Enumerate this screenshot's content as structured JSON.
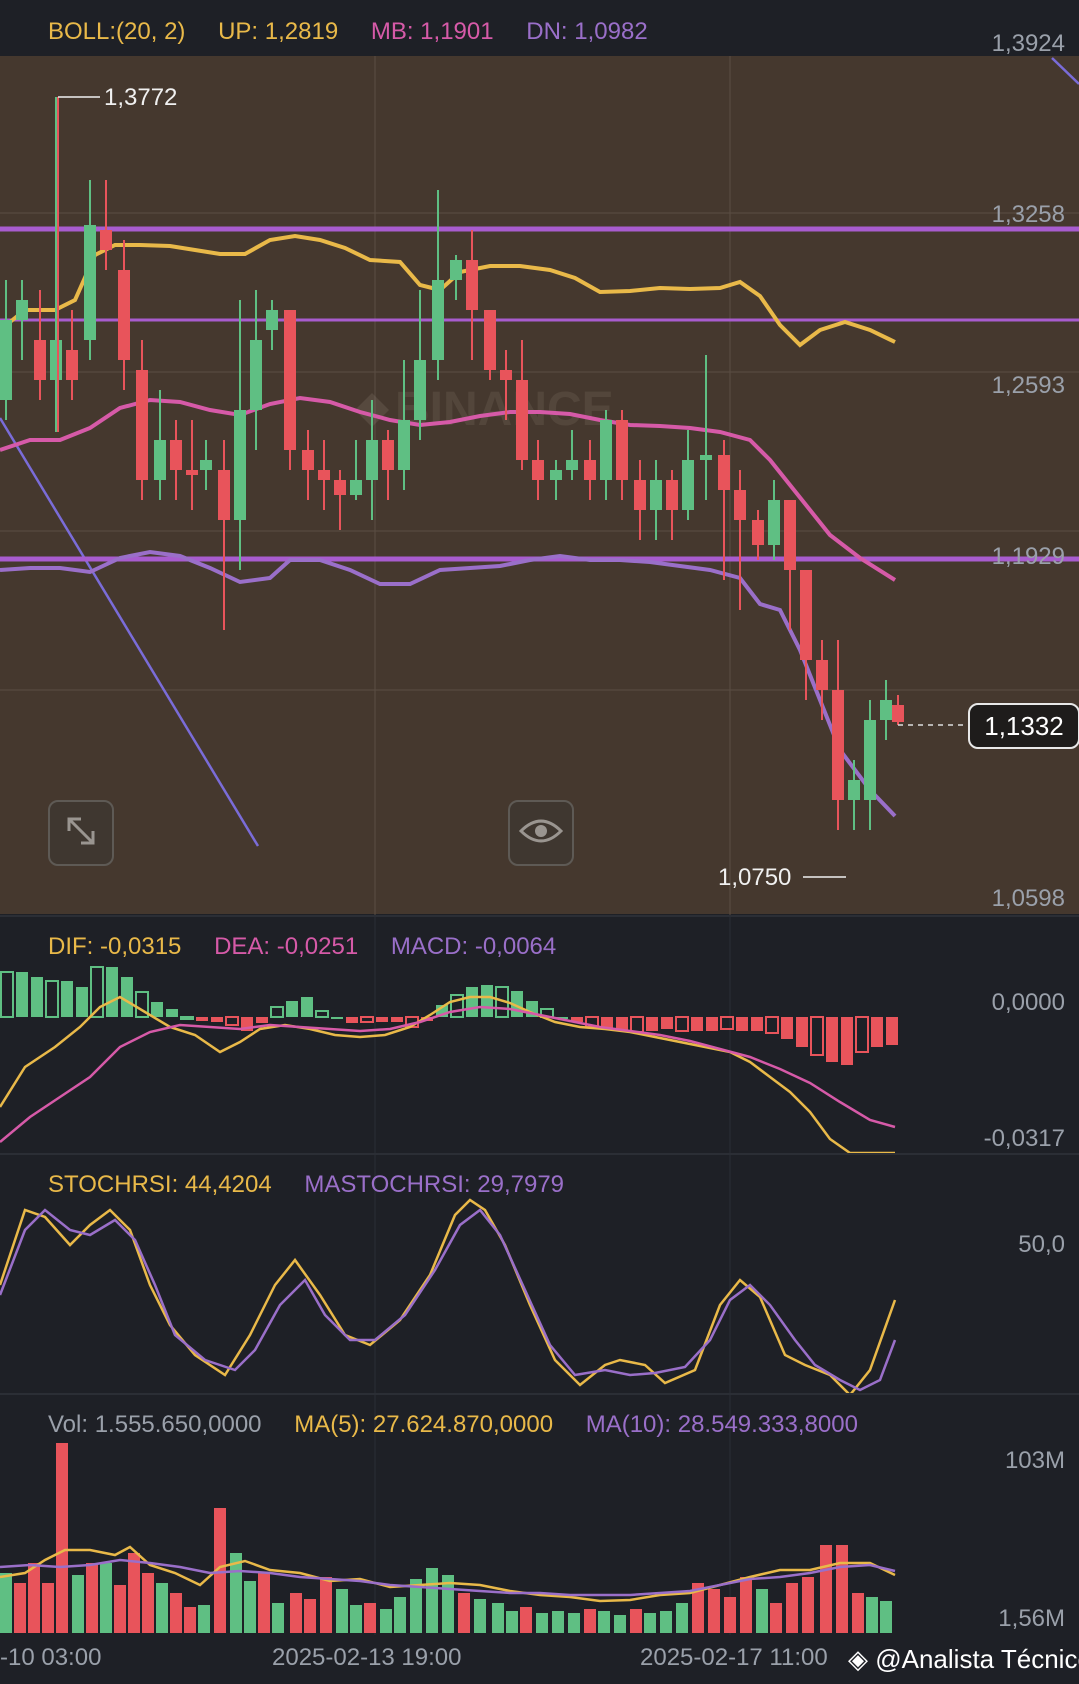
{
  "boll_legend": {
    "label": "BOLL:(20, 2)",
    "up": "UP: 1,2819",
    "mb": "MB: 1,1901",
    "dn": "DN: 1,0982"
  },
  "price_axis": [
    "1,3924",
    "1,3258",
    "1,2593",
    "1,1929",
    "1,0598"
  ],
  "last_price": "1,1332",
  "high_label": "1,3772",
  "low_label": "1,0750",
  "macd_legend": {
    "dif": "DIF: -0,0315",
    "dea": "DEA: -0,0251",
    "macd": "MACD: -0,0064"
  },
  "macd_axis": [
    "0,0000",
    "-0,0317"
  ],
  "stoch_legend": {
    "stoch": "STOCHRSI: 44,4204",
    "ma": "MASTOCHRSI: 29,7979"
  },
  "stoch_axis": [
    "50,0"
  ],
  "vol_legend": {
    "vol": "Vol: 1.555.650,0000",
    "ma5": "MA(5): 27.624.870,0000",
    "ma10": "MA(10): 28.549.333,8000"
  },
  "vol_axis": [
    "103M",
    "1,56M"
  ],
  "time_axis": [
    "-10 03:00",
    "2025-02-13 19:00",
    "2025-02-17 11:00"
  ],
  "watermark": "BINANCE",
  "credit": "@Analista Técnico",
  "colors": {
    "up": "#5fbf83",
    "down": "#e8545b",
    "boll_up": "#e9b949",
    "boll_mb": "#d65aa8",
    "boll_dn": "#9a6fc9",
    "main_bg": "#45382e"
  },
  "icons": [
    "expand-icon",
    "eye-icon",
    "binance-logo-icon"
  ]
}
